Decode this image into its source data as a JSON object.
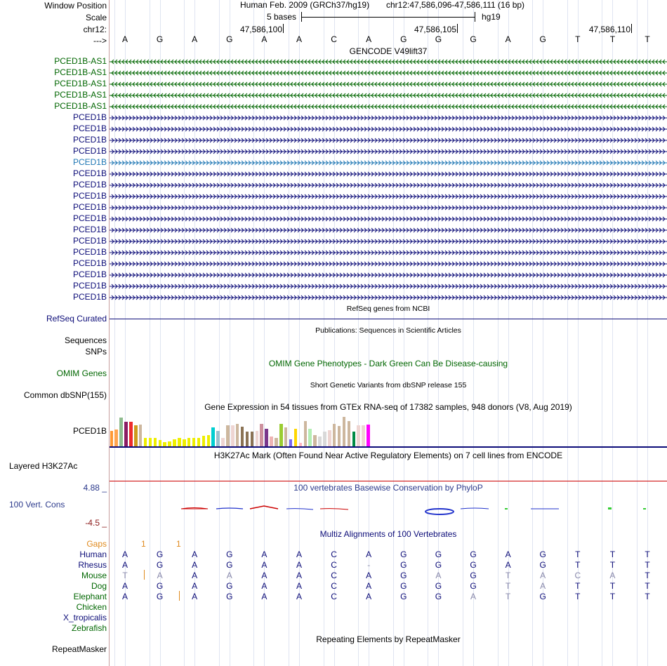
{
  "header": {
    "window_position_label": "Window Position",
    "scale_label": "Scale",
    "chrom_label": "chr12:",
    "strand_label": "--->",
    "assembly": "Human Feb. 2009 (GRCh37/hg19)",
    "position": "chr12:47,586,096-47,586,111 (16 bp)",
    "scale_text": "5 bases",
    "db": "hg19",
    "ticks": [
      "47,586,100",
      "47,586,105",
      "47,586,110"
    ]
  },
  "bases": [
    "A",
    "G",
    "A",
    "G",
    "A",
    "A",
    "C",
    "A",
    "G",
    "G",
    "G",
    "A",
    "G",
    "T",
    "T",
    "T"
  ],
  "gencode": {
    "title": "GENCODE V49lift37",
    "antisense_label": "PCED1B-AS1",
    "sense_label": "PCED1B",
    "colors": {
      "antisense": "#006600",
      "sense": "#0c0c78",
      "highlight": "#1f77b4"
    }
  },
  "tracks": {
    "refseq_title": "RefSeq genes from NCBI",
    "refseq_label": "RefSeq Curated",
    "pubs_title": "Publications: Sequences in Scientific Articles",
    "sequences_label": "Sequences",
    "snps_label": "SNPs",
    "omim_title": "OMIM Gene Phenotypes - Dark Green Can Be Disease-causing",
    "omim_label": "OMIM Genes",
    "dbsnp_title": "Short Genetic Variants from dbSNP release 155",
    "dbsnp_label": "Common dbSNP(155)",
    "gtex_title": "Gene Expression in 54 tissues from GTEx RNA-seq of 17382 samples, 948 donors (V8, Aug 2019)",
    "gtex_label": "PCED1B",
    "h3k27_title": "H3K27Ac Mark (Often Found Near Active Regulatory Elements) on 7 cell lines from ENCODE",
    "h3k27_label": "Layered H3K27Ac",
    "cons_title": "100 vertebrates Basewise Conservation by PhyloP",
    "cons_label": "100 Vert. Cons",
    "cons_max": "4.88 _",
    "cons_min": "-4.5 _",
    "multiz_title": "Multiz Alignments of 100 Vertebrates",
    "gaps_label": "Gaps",
    "gaps_values": [
      "1",
      "1"
    ],
    "rmsk_title": "Repeating Elements by RepeatMasker",
    "rmsk_label": "RepeatMasker"
  },
  "gtex_values": [
    0.48,
    0.52,
    0.9,
    0.75,
    0.75,
    0.65,
    0.67,
    0.25,
    0.25,
    0.25,
    0.2,
    0.12,
    0.15,
    0.22,
    0.25,
    0.22,
    0.27,
    0.27,
    0.25,
    0.33,
    0.35,
    0.58,
    0.48,
    0.25,
    0.65,
    0.65,
    0.7,
    0.6,
    0.45,
    0.45,
    0.48,
    0.7,
    0.55,
    0.3,
    0.25,
    0.7,
    0.58,
    0.22,
    0.55,
    0.1,
    0.78,
    0.55,
    0.35,
    0.3,
    0.45,
    0.5,
    0.7,
    0.62,
    0.92,
    0.78,
    0.45,
    0.65,
    0.65,
    0.68
  ],
  "gtex_colors": [
    "#ff9933",
    "#ffa54f",
    "#8fbc8f",
    "#8b1c62",
    "#ee2c2c",
    "#cd9b1d",
    "#cdb79e",
    "#eeee00",
    "#eeee00",
    "#eeee00",
    "#eeee00",
    "#eeee00",
    "#eeee00",
    "#eeee00",
    "#eeee00",
    "#eeee00",
    "#eeee00",
    "#eeee00",
    "#eeee00",
    "#eeee00",
    "#eeee00",
    "#00ced1",
    "#9ac0cd",
    "#eed5d2",
    "#cdb79e",
    "#eed5d2",
    "#cdb79e",
    "#8b7355",
    "#8b7355",
    "#8b7355",
    "#eed5d2",
    "#cd919e",
    "#7a378b",
    "#eeb4b4",
    "#cdb79e",
    "#9acd32",
    "#cdb79e",
    "#7a67ee",
    "#ffd700",
    "#ffb6c1",
    "#cdb79e",
    "#b4eeb4",
    "#cdb79e",
    "#d9d9d9",
    "#d9d9d9",
    "#eed5d2",
    "#cdb79e",
    "#cdb79e",
    "#cdb79e",
    "#cdb79e",
    "#008b45",
    "#eed5d2",
    "#eed5d2",
    "#ff00ff"
  ],
  "multiz": [
    {
      "species": "Human",
      "label_color": "#0c0c78",
      "bases": [
        "A",
        "G",
        "A",
        "G",
        "A",
        "A",
        "C",
        "A",
        "G",
        "G",
        "G",
        "A",
        "G",
        "T",
        "T",
        "T"
      ],
      "colors": [
        "#0c0c78",
        "#0c0c78",
        "#0c0c78",
        "#0c0c78",
        "#0c0c78",
        "#0c0c78",
        "#0c0c78",
        "#0c0c78",
        "#0c0c78",
        "#0c0c78",
        "#0c0c78",
        "#0c0c78",
        "#0c0c78",
        "#0c0c78",
        "#0c0c78",
        "#0c0c78"
      ]
    },
    {
      "species": "Rhesus",
      "label_color": "#0c0c78",
      "bases": [
        "A",
        "G",
        "A",
        "G",
        "A",
        "A",
        "C",
        "-",
        "G",
        "G",
        "G",
        "A",
        "G",
        "T",
        "T",
        "T"
      ],
      "colors": [
        "#0c0c78",
        "#0c0c78",
        "#0c0c78",
        "#0c0c78",
        "#0c0c78",
        "#0c0c78",
        "#0c0c78",
        "#8888aa",
        "#0c0c78",
        "#0c0c78",
        "#0c0c78",
        "#0c0c78",
        "#0c0c78",
        "#0c0c78",
        "#0c0c78",
        "#0c0c78"
      ]
    },
    {
      "species": "Mouse",
      "label_color": "#006600",
      "bases": [
        "T",
        "A",
        "A",
        "A",
        "A",
        "A",
        "C",
        "A",
        "G",
        "A",
        "G",
        "T",
        "A",
        "C",
        "A",
        "T"
      ],
      "colors": [
        "#8888aa",
        "#8888aa",
        "#0c0c78",
        "#8888aa",
        "#0c0c78",
        "#0c0c78",
        "#0c0c78",
        "#0c0c78",
        "#0c0c78",
        "#8888aa",
        "#0c0c78",
        "#8888aa",
        "#8888aa",
        "#8888aa",
        "#8888aa",
        "#0c0c78"
      ]
    },
    {
      "species": "Dog",
      "label_color": "#006600",
      "bases": [
        "A",
        "G",
        "A",
        "G",
        "A",
        "A",
        "C",
        "A",
        "G",
        "G",
        "G",
        "T",
        "A",
        "T",
        "T",
        "T"
      ],
      "colors": [
        "#0c0c78",
        "#0c0c78",
        "#0c0c78",
        "#0c0c78",
        "#0c0c78",
        "#0c0c78",
        "#0c0c78",
        "#0c0c78",
        "#0c0c78",
        "#0c0c78",
        "#0c0c78",
        "#8888aa",
        "#8888aa",
        "#0c0c78",
        "#0c0c78",
        "#0c0c78"
      ]
    },
    {
      "species": "Elephant",
      "label_color": "#006600",
      "bases": [
        "A",
        "G",
        "A",
        "G",
        "A",
        "A",
        "C",
        "A",
        "G",
        "G",
        "A",
        "T",
        "G",
        "T",
        "T",
        "T"
      ],
      "colors": [
        "#0c0c78",
        "#0c0c78",
        "#0c0c78",
        "#0c0c78",
        "#0c0c78",
        "#0c0c78",
        "#0c0c78",
        "#0c0c78",
        "#0c0c78",
        "#0c0c78",
        "#8888aa",
        "#8888aa",
        "#0c0c78",
        "#0c0c78",
        "#0c0c78",
        "#0c0c78"
      ]
    },
    {
      "species": "Chicken",
      "label_color": "#006600",
      "bases": [],
      "colors": []
    },
    {
      "species": "X_tropicalis",
      "label_color": "#0c0c78",
      "bases": [],
      "colors": []
    },
    {
      "species": "Zebrafish",
      "label_color": "#006600",
      "bases": [],
      "colors": []
    }
  ]
}
